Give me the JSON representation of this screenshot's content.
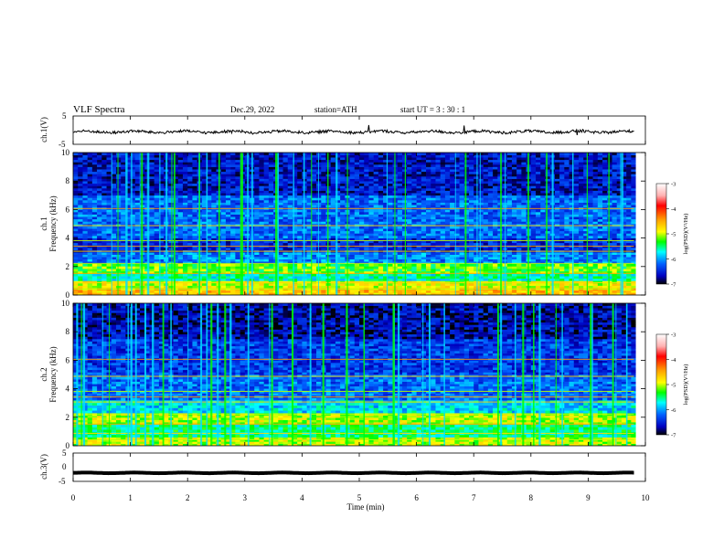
{
  "header": {
    "title": "VLF  Spectra",
    "date": "Dec.29, 2022",
    "station": "station=ATH",
    "start": "start  UT  =    3  : 30 : 1"
  },
  "chart_data": [
    {
      "type": "line",
      "name": "ch1-waveform",
      "ylabel": "ch.1(V)",
      "ylim": [
        -5,
        5
      ],
      "yticks": [
        "5",
        "-5"
      ],
      "xlim": [
        0,
        10
      ],
      "duration_min": 9.8,
      "series": [
        {
          "color": "#000000",
          "mean_level_V": -0.6,
          "amplitude_V": 0.8
        }
      ]
    },
    {
      "type": "heatmap",
      "name": "ch1-spectrogram",
      "ylabel": "ch.1\nFrequency  (kHz)",
      "ylim": [
        0,
        10
      ],
      "yticks": [
        "0",
        "2",
        "4",
        "6",
        "8",
        "10"
      ],
      "xlim": [
        0,
        10
      ],
      "colorbar": {
        "label": "log(PSD)(V²/Hz)",
        "ticks": [
          "-3",
          "-4",
          "-5",
          "-6",
          "-7"
        ],
        "range": [
          -7,
          -3
        ]
      },
      "band_levels": [
        {
          "freq_kHz": [
            0,
            0.5
          ],
          "level": -4.6
        },
        {
          "freq_kHz": [
            0.5,
            1.0
          ],
          "level": -4.9
        },
        {
          "freq_kHz": [
            1.0,
            1.5
          ],
          "level": -5.6
        },
        {
          "freq_kHz": [
            1.5,
            2.2
          ],
          "level": -5.2
        },
        {
          "freq_kHz": [
            2.2,
            3.0
          ],
          "level": -6.1
        },
        {
          "freq_kHz": [
            3.0,
            4.0
          ],
          "level": -6.5
        },
        {
          "freq_kHz": [
            4.0,
            7.0
          ],
          "level": -6.2
        },
        {
          "freq_kHz": [
            7.0,
            10.0
          ],
          "level": -6.6
        }
      ]
    },
    {
      "type": "heatmap",
      "name": "ch2-spectrogram",
      "ylabel": "ch.2\nFrequency  (kHz)",
      "ylim": [
        0,
        10
      ],
      "yticks": [
        "0",
        "2",
        "4",
        "6",
        "8",
        "10"
      ],
      "xlim": [
        0,
        10
      ],
      "colorbar": {
        "label": "log(PSD)(V²/Hz)",
        "ticks": [
          "-3",
          "-4",
          "-5",
          "-6",
          "-7"
        ],
        "range": [
          -7,
          -3
        ]
      },
      "band_levels": [
        {
          "freq_kHz": [
            0,
            0.6
          ],
          "level": -5.0
        },
        {
          "freq_kHz": [
            0.6,
            1.5
          ],
          "level": -5.5
        },
        {
          "freq_kHz": [
            1.5,
            2.3
          ],
          "level": -5.0
        },
        {
          "freq_kHz": [
            2.3,
            3.2
          ],
          "level": -5.8
        },
        {
          "freq_kHz": [
            3.2,
            5.0
          ],
          "level": -6.2
        },
        {
          "freq_kHz": [
            5.0,
            7.5
          ],
          "level": -6.4
        },
        {
          "freq_kHz": [
            7.5,
            10.0
          ],
          "level": -6.7
        }
      ]
    },
    {
      "type": "line",
      "name": "ch3-waveform",
      "ylabel": "ch.3(V)",
      "ylim": [
        -5,
        5
      ],
      "yticks": [
        "5",
        "0",
        "-5"
      ],
      "xlim": [
        0,
        10
      ],
      "duration_min": 9.8,
      "series": [
        {
          "color": "#000000",
          "mean_level_V": -2.0,
          "amplitude_V": 0.3
        }
      ]
    }
  ],
  "x_axis": {
    "label": "Time  (min)",
    "ticks": [
      "0",
      "1",
      "2",
      "3",
      "4",
      "5",
      "6",
      "7",
      "8",
      "9",
      "10"
    ]
  }
}
